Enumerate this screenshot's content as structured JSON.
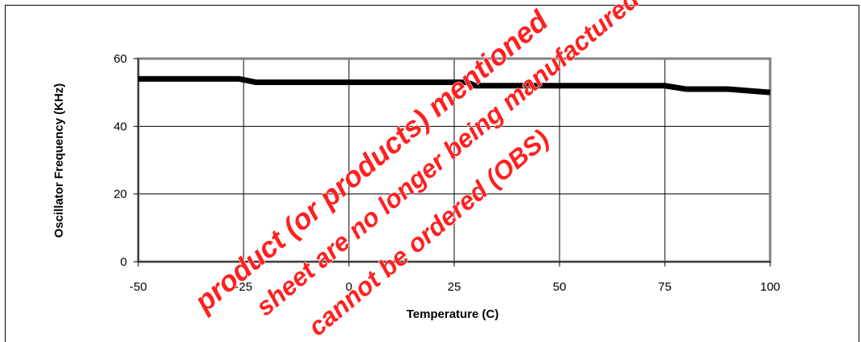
{
  "chart_data": {
    "type": "line",
    "xlabel": "Temperature (C)",
    "ylabel": "Oscillator Frequency (KHz)",
    "xlim": [
      -50,
      100
    ],
    "ylim": [
      0,
      60
    ],
    "x_ticks": [
      -50,
      -25,
      0,
      25,
      50,
      75,
      100
    ],
    "y_ticks": [
      0,
      20,
      40,
      60
    ],
    "grid": true,
    "x": [
      -50,
      -40,
      -26,
      -22,
      -10,
      0,
      10,
      20,
      28,
      30,
      40,
      50,
      60,
      75,
      80,
      90,
      100
    ],
    "series": [
      {
        "values": [
          54,
          54,
          54,
          53,
          53,
          53,
          53,
          53,
          53,
          52,
          52,
          52,
          52,
          52,
          51,
          51,
          50
        ]
      }
    ],
    "colors": {
      "line": "#000000",
      "grid": "#000000",
      "plot_border": "#808080",
      "watermark": "#ff2020"
    }
  },
  "watermark": {
    "lines": [
      "product (or products) mentioned",
      "sheet are no longer being manufactured",
      "cannot be ordered (OBS)"
    ]
  }
}
